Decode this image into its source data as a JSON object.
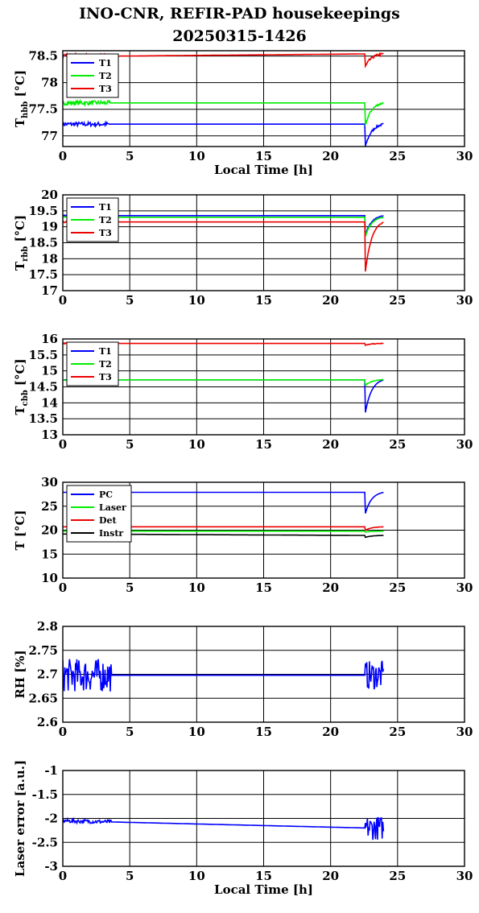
{
  "figure": {
    "title_line1": "INO-CNR, REFIR-PAD housekeepings",
    "title_line2": "20250315-1426"
  },
  "chart_data": [
    {
      "type": "line",
      "ylabel_main": "T",
      "ylabel_sub": "hbb",
      "ylabel_unit": "[°C]",
      "xlabel": "Local Time [h]",
      "xlim": [
        0,
        30
      ],
      "ylim": [
        76.8,
        78.6
      ],
      "xticks": [
        "0",
        "5",
        "10",
        "15",
        "20",
        "25",
        "30"
      ],
      "yticks": [
        {
          "v": 77,
          "label": "77"
        },
        {
          "v": 77.5,
          "label": "77.5"
        },
        {
          "v": 78,
          "label": "78"
        },
        {
          "v": 78.5,
          "label": "78.5"
        }
      ],
      "grid": true,
      "legend": "top-left",
      "series": [
        {
          "name": "T1",
          "color": "#0000ff",
          "flat": 77.22,
          "end": 77.22,
          "drop": 76.8,
          "noise": 0.04,
          "noise_end": 3.5
        },
        {
          "name": "T2",
          "color": "#00ee00",
          "flat": 77.62,
          "end": 77.62,
          "drop": 77.2,
          "noise": 0.04,
          "noise_end": 3.5
        },
        {
          "name": "T3",
          "color": "#ee0000",
          "flat": 78.49,
          "end": 78.54,
          "drop": 78.3,
          "noise": 0.05,
          "noise_end": 3.5
        }
      ]
    },
    {
      "type": "line",
      "ylabel_main": "T",
      "ylabel_sub": "rbb",
      "ylabel_unit": "[°C]",
      "xlabel": "",
      "xlim": [
        0,
        30
      ],
      "ylim": [
        17,
        20
      ],
      "xticks": [
        "0",
        "5",
        "10",
        "15",
        "20",
        "25",
        "30"
      ],
      "yticks": [
        {
          "v": 17,
          "label": "17"
        },
        {
          "v": 17.5,
          "label": "17.5"
        },
        {
          "v": 18,
          "label": "18"
        },
        {
          "v": 18.5,
          "label": "18.5"
        },
        {
          "v": 19,
          "label": "19"
        },
        {
          "v": 19.5,
          "label": "19.5"
        },
        {
          "v": 20,
          "label": "20"
        }
      ],
      "grid": true,
      "legend": "top-left",
      "series": [
        {
          "name": "T1",
          "color": "#0000ff",
          "flat": 19.35,
          "end": 19.35,
          "drop": 18.75,
          "noise": 0.02,
          "noise_end": 0.5
        },
        {
          "name": "T2",
          "color": "#00ee00",
          "flat": 19.3,
          "end": 19.3,
          "drop": 18.7,
          "noise": 0.02,
          "noise_end": 0.5
        },
        {
          "name": "T3",
          "color": "#ee0000",
          "flat": 19.15,
          "end": 19.15,
          "drop": 17.6,
          "noise": 0.02,
          "noise_end": 0.5
        }
      ]
    },
    {
      "type": "line",
      "ylabel_main": "T",
      "ylabel_sub": "cbb",
      "ylabel_unit": "[°C]",
      "xlabel": "",
      "xlim": [
        0,
        30
      ],
      "ylim": [
        13,
        16
      ],
      "xticks": [
        "0",
        "5",
        "10",
        "15",
        "20",
        "25",
        "30"
      ],
      "yticks": [
        {
          "v": 13,
          "label": "13"
        },
        {
          "v": 13.5,
          "label": "13.5"
        },
        {
          "v": 14,
          "label": "14"
        },
        {
          "v": 14.5,
          "label": "14.5"
        },
        {
          "v": 15,
          "label": "15"
        },
        {
          "v": 15.5,
          "label": "15.5"
        },
        {
          "v": 16,
          "label": "16"
        }
      ],
      "grid": true,
      "legend": "top-left",
      "series": [
        {
          "name": "T1",
          "color": "#0000ff",
          "flat": 14.72,
          "end": 14.72,
          "drop": 13.7,
          "noise": 0.0,
          "noise_end": 0
        },
        {
          "name": "T2",
          "color": "#00ee00",
          "flat": 14.72,
          "end": 14.72,
          "drop": 14.55,
          "noise": 0.02,
          "noise_end": 1
        },
        {
          "name": "T3",
          "color": "#ee0000",
          "flat": 15.86,
          "end": 15.86,
          "drop": 15.8,
          "noise": 0.02,
          "noise_end": 3.5
        }
      ]
    },
    {
      "type": "line",
      "ylabel_main": "T [°C]",
      "ylabel_sub": "",
      "ylabel_unit": "",
      "xlabel": "",
      "xlim": [
        0,
        30
      ],
      "ylim": [
        10,
        30
      ],
      "xticks": [
        "0",
        "5",
        "10",
        "15",
        "20",
        "25",
        "30"
      ],
      "yticks": [
        {
          "v": 10,
          "label": "10"
        },
        {
          "v": 15,
          "label": "15"
        },
        {
          "v": 20,
          "label": "20"
        },
        {
          "v": 25,
          "label": "25"
        },
        {
          "v": 30,
          "label": "30"
        }
      ],
      "grid": true,
      "legend": "top-left",
      "series": [
        {
          "name": "PC",
          "color": "#0000ff",
          "flat": 27.9,
          "end": 27.9,
          "drop": 23.5,
          "noise": 0.0,
          "noise_end": 0
        },
        {
          "name": "Laser",
          "color": "#00ee00",
          "flat": 19.8,
          "end": 19.8,
          "drop": 19.6,
          "noise": 0.0,
          "noise_end": 0
        },
        {
          "name": "Det",
          "color": "#ee0000",
          "flat": 20.7,
          "end": 20.7,
          "drop": 20.0,
          "noise": 0.0,
          "noise_end": 0
        },
        {
          "name": "Instr",
          "color": "#000000",
          "flat": 19.2,
          "end": 18.9,
          "drop": 18.5,
          "noise": 0.0,
          "noise_end": 0
        }
      ]
    },
    {
      "type": "line",
      "ylabel_main": "RH [%]",
      "ylabel_sub": "",
      "ylabel_unit": "",
      "xlabel": "",
      "xlim": [
        0,
        30
      ],
      "ylim": [
        2.6,
        2.8
      ],
      "xticks": [
        "0",
        "5",
        "10",
        "15",
        "20",
        "25",
        "30"
      ],
      "yticks": [
        {
          "v": 2.6,
          "label": "2.6"
        },
        {
          "v": 2.65,
          "label": "2.65"
        },
        {
          "v": 2.7,
          "label": "2.7"
        },
        {
          "v": 2.75,
          "label": "2.75"
        },
        {
          "v": 2.8,
          "label": "2.8"
        }
      ],
      "grid": true,
      "legend": "none",
      "series": [
        {
          "name": "",
          "color": "#0000ff",
          "flat": 2.698,
          "end": 2.698,
          "drop": 2.698,
          "noise": 0.035,
          "noise_end": 3.6,
          "burst_noise": 0.03
        }
      ]
    },
    {
      "type": "line",
      "ylabel_main": "Laser error [a.u.]",
      "ylabel_sub": "",
      "ylabel_unit": "",
      "xlabel": "Local Time [h]",
      "xlim": [
        0,
        30
      ],
      "ylim": [
        -3,
        -1
      ],
      "xticks": [
        "0",
        "5",
        "10",
        "15",
        "20",
        "25",
        "30"
      ],
      "yticks": [
        {
          "v": -3,
          "label": "-3"
        },
        {
          "v": -2.5,
          "label": "-2.5"
        },
        {
          "v": -2,
          "label": "-2"
        },
        {
          "v": -1.5,
          "label": "-1.5"
        },
        {
          "v": -1,
          "label": "-1"
        }
      ],
      "grid": true,
      "legend": "none",
      "series": [
        {
          "name": "",
          "color": "#0000ff",
          "flat": -2.05,
          "end": -2.2,
          "drop": -2.2,
          "noise": 0.04,
          "noise_end": 3.6,
          "burst_noise": 0.25
        }
      ]
    }
  ]
}
